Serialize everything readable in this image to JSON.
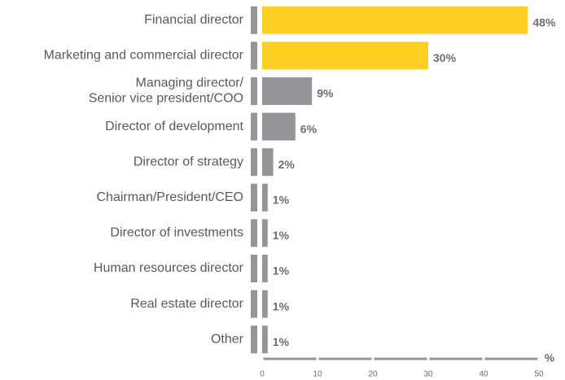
{
  "chart_data": {
    "type": "bar",
    "orientation": "horizontal",
    "categories": [
      "Financial director",
      "Marketing and commercial director",
      "Managing director/\nSenior vice president/COO",
      "Director of development",
      "Director of strategy",
      "Chairman/President/CEO",
      "Director of investments",
      "Human resources director",
      "Real estate director",
      "Other"
    ],
    "values": [
      48,
      30,
      9,
      6,
      2,
      1,
      1,
      1,
      1,
      1
    ],
    "value_labels": [
      "48%",
      "30%",
      "9%",
      "6%",
      "2%",
      "1%",
      "1%",
      "1%",
      "1%",
      "1%"
    ],
    "colors": [
      "#ffd023",
      "#ffd023",
      "#939598",
      "#939598",
      "#939598",
      "#939598",
      "#939598",
      "#939598",
      "#939598",
      "#939598"
    ],
    "xlabel": "%",
    "xlim": [
      0,
      50
    ],
    "xticks": [
      0,
      10,
      20,
      30,
      40,
      50
    ],
    "grid": false
  }
}
